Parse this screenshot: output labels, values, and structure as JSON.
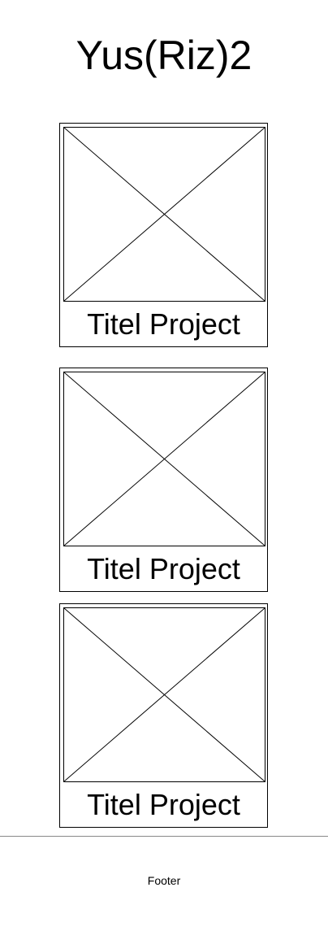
{
  "header": {
    "title": "Yus(Riz)2"
  },
  "projects": [
    {
      "title": "Titel Project",
      "image_icon": "image-placeholder-icon"
    },
    {
      "title": "Titel Project",
      "image_icon": "image-placeholder-icon"
    },
    {
      "title": "Titel Project",
      "image_icon": "image-placeholder-icon"
    }
  ],
  "footer": {
    "label": "Footer"
  }
}
